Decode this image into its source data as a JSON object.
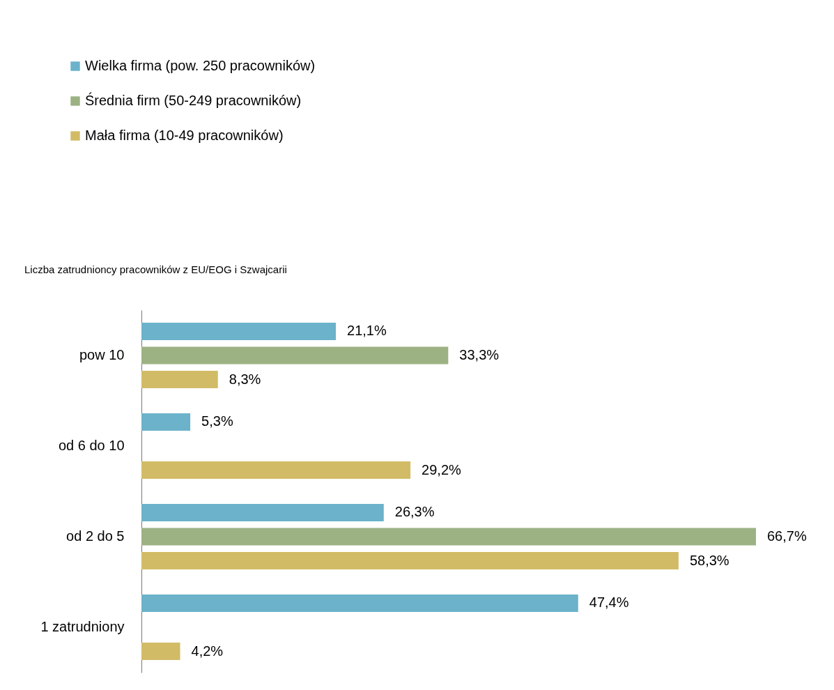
{
  "chart_data": {
    "type": "bar",
    "orientation": "horizontal",
    "title": "Liczba zatrudnioncy pracowników z EU/EOG i Szwajcarii",
    "categories": [
      "pow 10",
      "od 6 do 10",
      "od 2 do 5",
      "1 zatrudniony"
    ],
    "series": [
      {
        "name": "Wielka firma (pow. 250 pracowników)",
        "color": "#6bb2ca",
        "values": [
          21.1,
          5.3,
          26.3,
          47.4
        ],
        "value_labels": [
          "21,1%",
          "5,3%",
          "26,3%",
          "47,4%"
        ]
      },
      {
        "name": "Średnia firm (50-249 pracowników)",
        "color": "#9db283",
        "values": [
          33.3,
          null,
          66.7,
          null
        ],
        "value_labels": [
          "33,3%",
          null,
          "66,7%",
          null
        ]
      },
      {
        "name": "Mała firma (10-49 pracowników)",
        "color": "#d2bb66",
        "values": [
          8.3,
          29.2,
          58.3,
          4.2
        ],
        "value_labels": [
          "8,3%",
          "29,2%",
          "58,3%",
          "4,2%"
        ]
      }
    ],
    "legend": "top left",
    "grid": false
  }
}
